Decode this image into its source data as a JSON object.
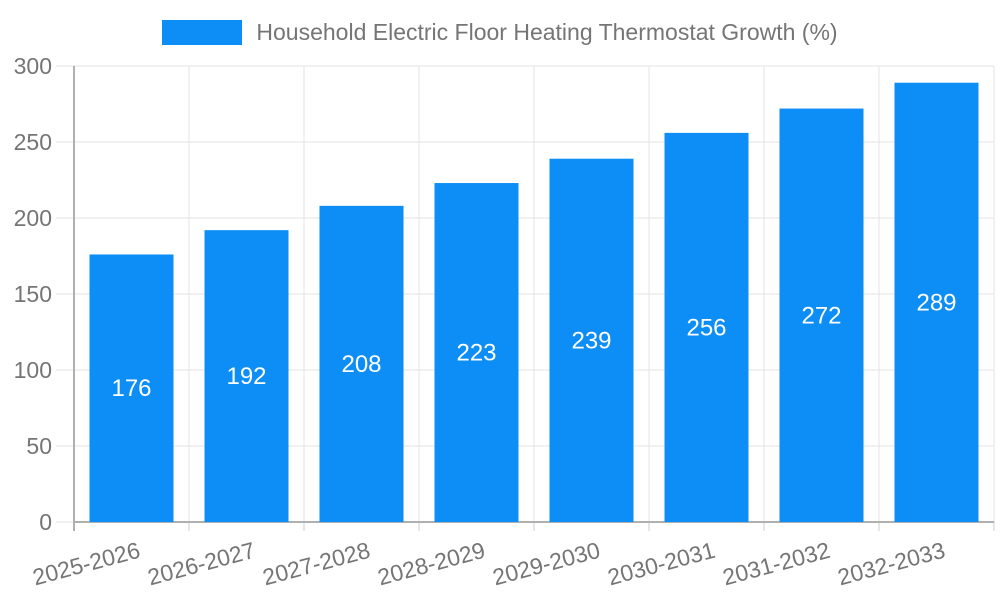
{
  "chart_data": {
    "type": "bar",
    "title": "",
    "legend": {
      "label": "Household Electric Floor Heating Thermostat Growth (%)",
      "position": "top"
    },
    "categories": [
      "2025-2026",
      "2026-2027",
      "2027-2028",
      "2028-2029",
      "2029-2030",
      "2030-2031",
      "2031-2032",
      "2032-2033"
    ],
    "values": [
      176,
      192,
      208,
      223,
      239,
      256,
      272,
      289
    ],
    "xlabel": "",
    "ylabel": "",
    "ylim": [
      0,
      300
    ],
    "yticks": [
      0,
      50,
      100,
      150,
      200,
      250,
      300
    ],
    "grid": "on",
    "value_label_position": "inside-center",
    "x_label_rotation_deg": -15,
    "colors": {
      "bar": "#0d8ef6",
      "value_label": "#ffffff",
      "axis_text": "#757575",
      "grid_line": "#e3e3e3",
      "axis_line": "#b0b0b0",
      "tick_line": "#cfcfcf"
    }
  }
}
